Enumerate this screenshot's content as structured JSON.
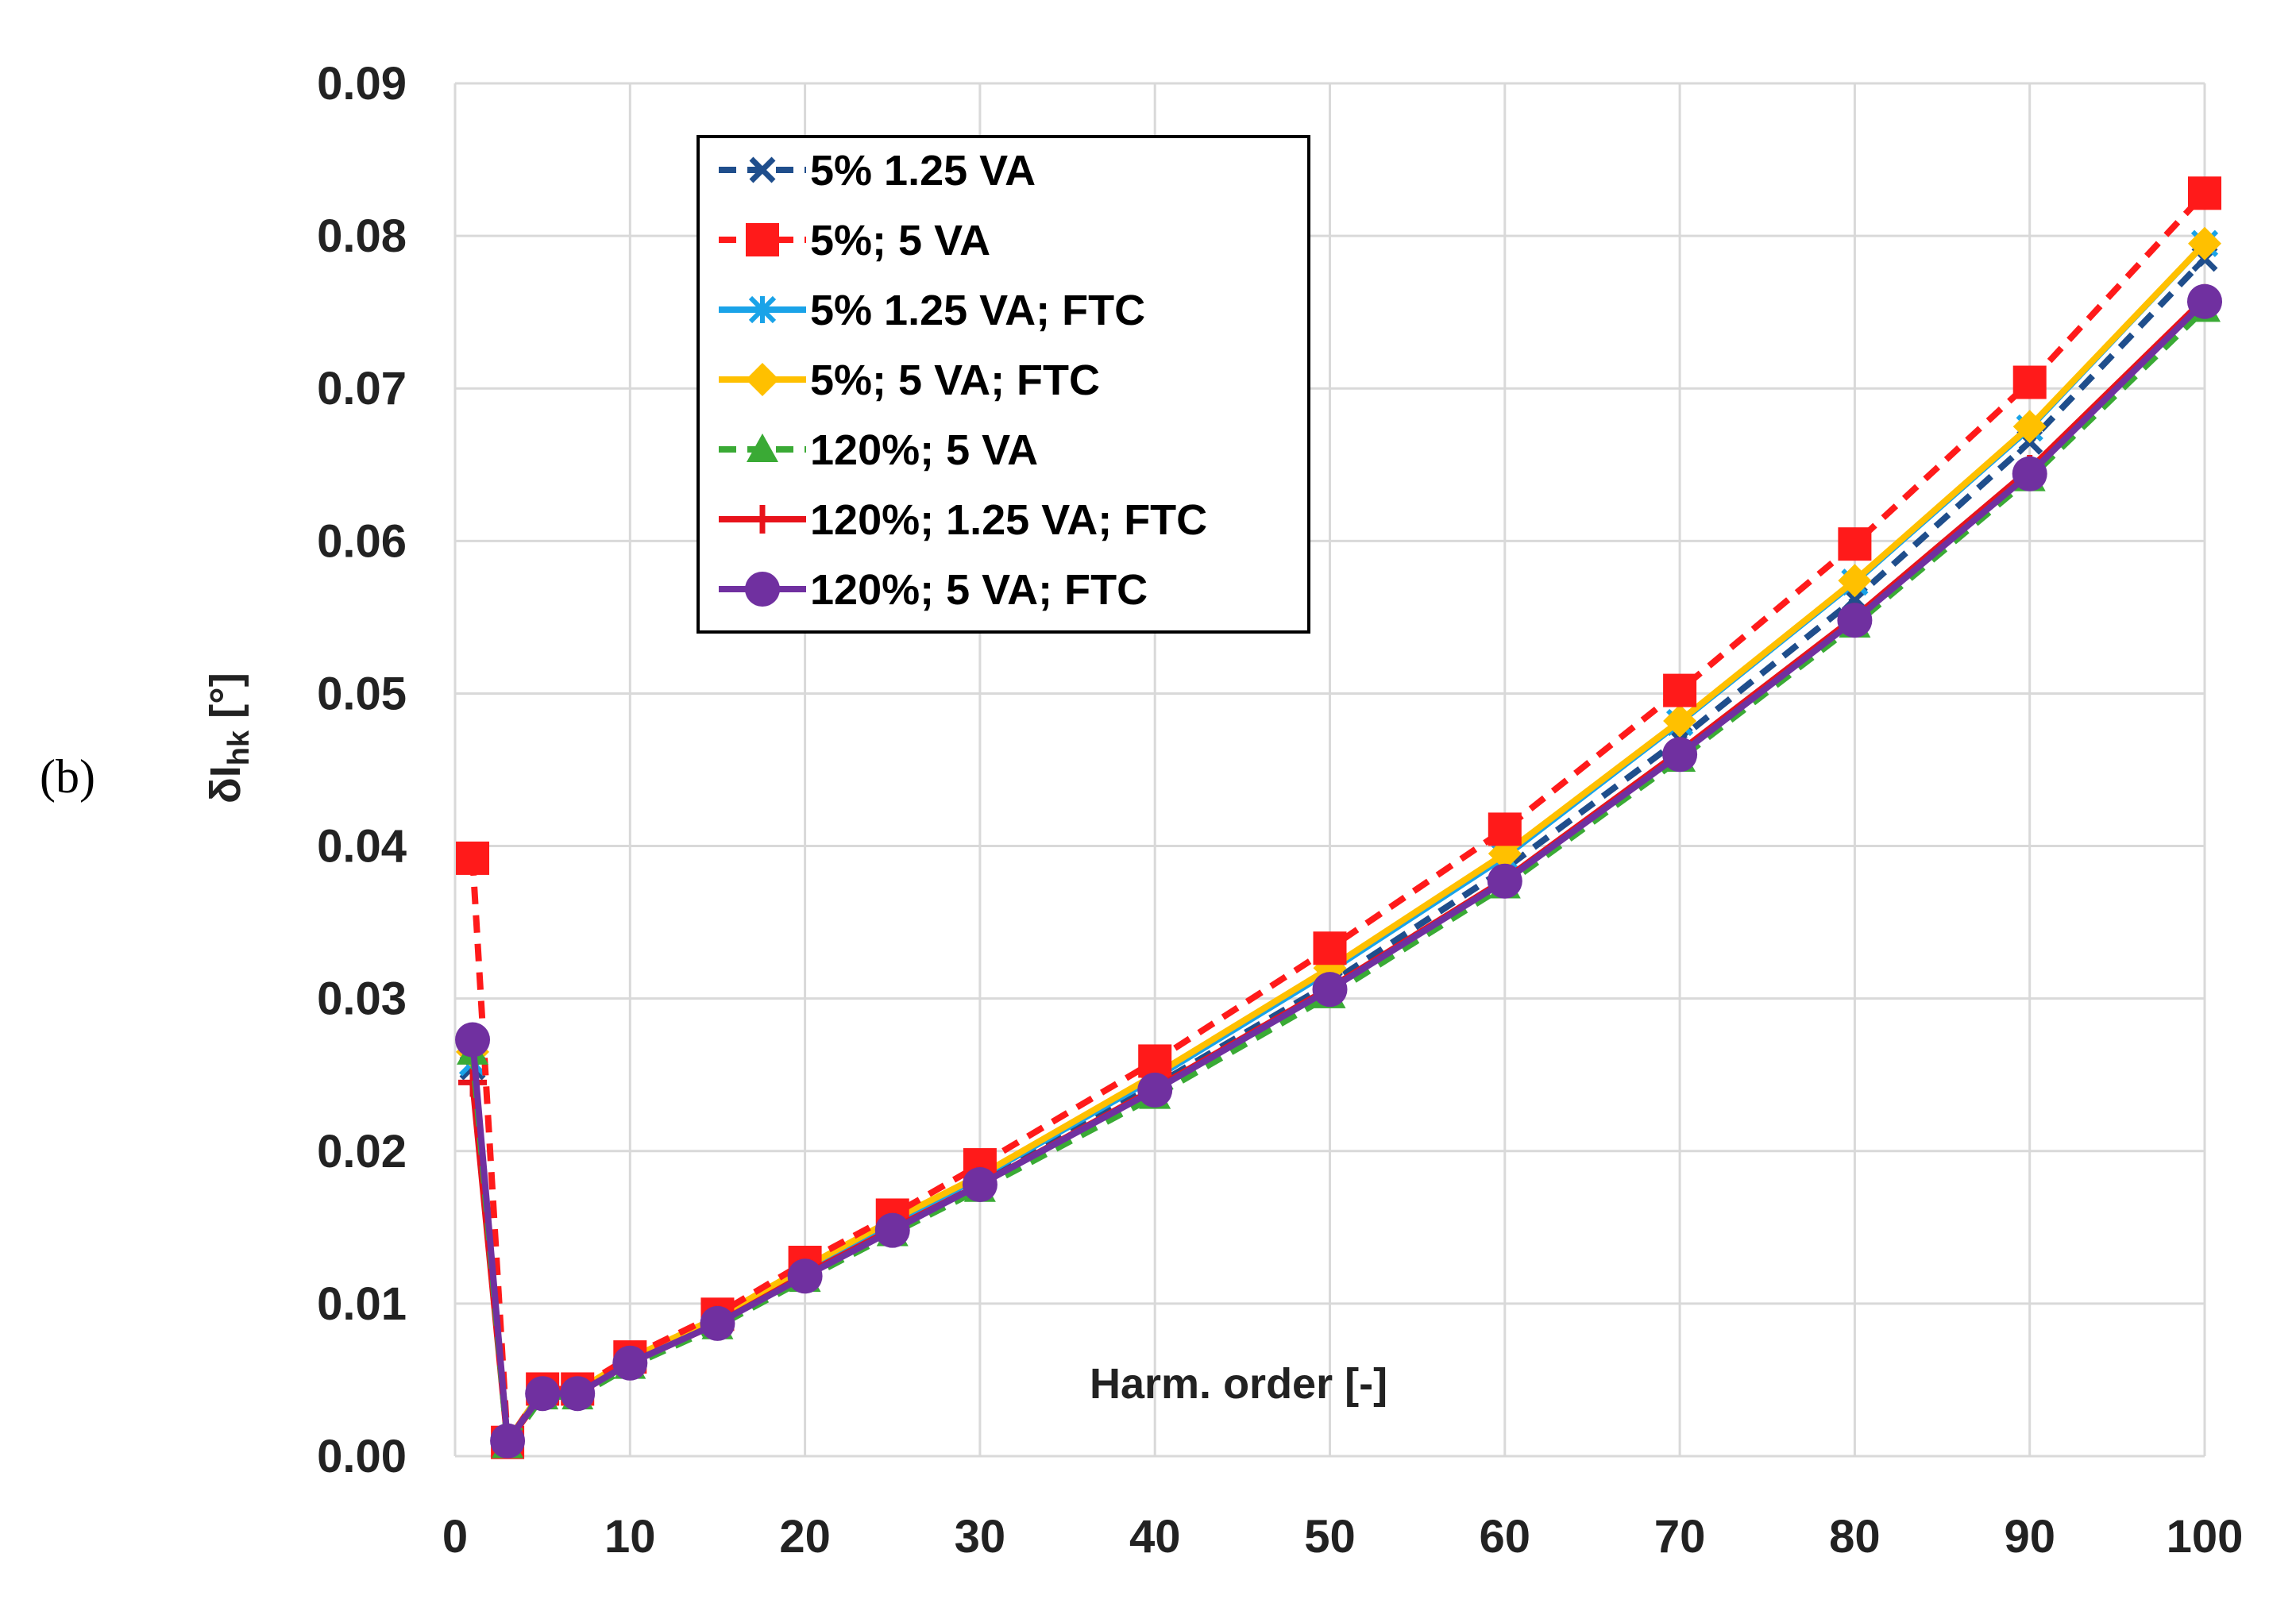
{
  "panel_label": "(b)",
  "chart_data": {
    "type": "line",
    "title": "",
    "xlabel": "Harm. order [-]",
    "ylabel_main": "δI",
    "ylabel_sub": "hk",
    "ylabel_unit": " [°]",
    "xlim": [
      0,
      100
    ],
    "ylim": [
      0,
      0.09
    ],
    "xticks": [
      0,
      10,
      20,
      30,
      40,
      50,
      60,
      70,
      80,
      90,
      100
    ],
    "xtick_labels": [
      "0",
      "10",
      "20",
      "30",
      "40",
      "50",
      "60",
      "70",
      "80",
      "90",
      "100"
    ],
    "yticks": [
      0,
      0.01,
      0.02,
      0.03,
      0.04,
      0.05,
      0.06,
      0.07,
      0.08,
      0.09
    ],
    "ytick_labels": [
      "0.00",
      "0.01",
      "0.02",
      "0.03",
      "0.04",
      "0.05",
      "0.06",
      "0.07",
      "0.08",
      "0.09"
    ],
    "grid": true,
    "legend_position": "top-left",
    "x": [
      1,
      3,
      5,
      7,
      10,
      15,
      20,
      25,
      30,
      40,
      50,
      60,
      70,
      80,
      90,
      100
    ],
    "series": [
      {
        "name": "5% 1.25 VA",
        "color": "#1f4e8c",
        "dash": "dashed",
        "marker": "x",
        "values": [
          0.0255,
          0.001,
          0.0042,
          0.0042,
          0.0062,
          0.0088,
          0.0121,
          0.0151,
          0.018,
          0.0243,
          0.031,
          0.0385,
          0.047,
          0.0562,
          0.0665,
          0.0785
        ]
      },
      {
        "name": "5%; 5 VA",
        "color": "#ff1a1a",
        "dash": "dashed",
        "marker": "square",
        "values": [
          0.0392,
          0.0009,
          0.0044,
          0.0044,
          0.0065,
          0.0093,
          0.0127,
          0.0158,
          0.0191,
          0.0259,
          0.0333,
          0.0411,
          0.0502,
          0.0598,
          0.0704,
          0.0828
        ]
      },
      {
        "name": "5% 1.25 VA; FTC",
        "color": "#1aa3e8",
        "dash": "solid",
        "marker": "asterisk",
        "values": [
          0.0258,
          0.001,
          0.0043,
          0.0043,
          0.0063,
          0.009,
          0.0123,
          0.0153,
          0.0183,
          0.0248,
          0.0318,
          0.0393,
          0.0481,
          0.0573,
          0.0674,
          0.0795
        ]
      },
      {
        "name": "5%; 5 VA; FTC",
        "color": "#ffc000",
        "dash": "solid",
        "marker": "diamond",
        "values": [
          0.0265,
          0.001,
          0.0043,
          0.0043,
          0.0064,
          0.0091,
          0.0124,
          0.0155,
          0.0184,
          0.025,
          0.032,
          0.0395,
          0.0482,
          0.0574,
          0.0675,
          0.0795
        ]
      },
      {
        "name": "120%; 5 VA",
        "color": "#3aaa35",
        "dash": "dashed",
        "marker": "triangle",
        "values": [
          0.0265,
          0.0007,
          0.0039,
          0.0039,
          0.0059,
          0.0085,
          0.0116,
          0.0146,
          0.0175,
          0.0236,
          0.0302,
          0.0374,
          0.0457,
          0.0545,
          0.0641,
          0.0752
        ]
      },
      {
        "name": "120%; 1.25 VA; FTC",
        "color": "#e8131b",
        "dash": "solid",
        "marker": "plus",
        "values": [
          0.0245,
          0.0009,
          0.0041,
          0.0041,
          0.0061,
          0.0087,
          0.0119,
          0.0149,
          0.0178,
          0.0241,
          0.0307,
          0.0378,
          0.0462,
          0.055,
          0.0647,
          0.0759
        ]
      },
      {
        "name": "120%; 5 VA; FTC",
        "color": "#7030a0",
        "dash": "solid",
        "marker": "circle",
        "values": [
          0.0273,
          0.001,
          0.0041,
          0.0041,
          0.0061,
          0.0087,
          0.0118,
          0.0148,
          0.0178,
          0.024,
          0.0306,
          0.0377,
          0.046,
          0.0548,
          0.0644,
          0.0757
        ]
      }
    ]
  }
}
